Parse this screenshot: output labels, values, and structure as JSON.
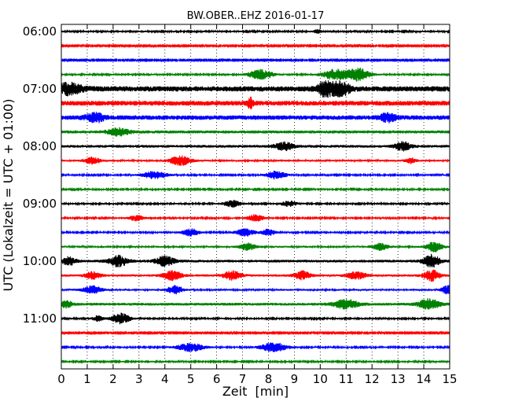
{
  "chart_data": {
    "type": "line",
    "title": "BW.OBER..EHZ 2016-01-17",
    "xlabel": "Zeit  [min]",
    "ylabel": "UTC (Lokalzeit = UTC + 01:00)",
    "xlim": [
      0,
      15
    ],
    "x_ticks": [
      "0",
      "1",
      "2",
      "3",
      "4",
      "5",
      "6",
      "7",
      "8",
      "9",
      "10",
      "11",
      "12",
      "13",
      "14",
      "15"
    ],
    "y_ticks": [
      "06:00",
      "07:00",
      "08:00",
      "09:00",
      "10:00",
      "11:00"
    ],
    "colors": [
      "#000000",
      "#ff0000",
      "#0000ff",
      "#008000"
    ],
    "grid": "vertical dotted lines at each minute",
    "traces": [
      {
        "start": "06:00",
        "color": "#000000",
        "amplitude": 0.1,
        "bursts": [
          {
            "at": 9.9,
            "amp": 0.25,
            "dur": 0.15
          }
        ]
      },
      {
        "start": "06:15",
        "color": "#ff0000",
        "amplitude": 0.08,
        "bursts": []
      },
      {
        "start": "06:30",
        "color": "#0000ff",
        "amplitude": 0.08,
        "bursts": []
      },
      {
        "start": "06:45",
        "color": "#008000",
        "amplitude": 0.1,
        "bursts": [
          {
            "at": 7.7,
            "amp": 0.65,
            "dur": 0.45
          },
          {
            "at": 10.6,
            "amp": 0.7,
            "dur": 0.5
          },
          {
            "at": 11.5,
            "amp": 0.85,
            "dur": 0.4
          }
        ]
      },
      {
        "start": "07:00",
        "color": "#000000",
        "amplitude": 0.35,
        "bursts": [
          {
            "at": 0.3,
            "amp": 0.65,
            "dur": 0.5
          },
          {
            "at": 10.2,
            "amp": 0.9,
            "dur": 0.3
          },
          {
            "at": 10.8,
            "amp": 0.8,
            "dur": 0.35
          }
        ]
      },
      {
        "start": "07:15",
        "color": "#ff0000",
        "amplitude": 0.32,
        "bursts": [
          {
            "at": 7.3,
            "amp": 0.6,
            "dur": 0.1
          }
        ]
      },
      {
        "start": "07:30",
        "color": "#0000ff",
        "amplitude": 0.3,
        "bursts": [
          {
            "at": 1.3,
            "amp": 0.55,
            "dur": 0.35
          },
          {
            "at": 12.6,
            "amp": 0.5,
            "dur": 0.3
          }
        ]
      },
      {
        "start": "07:45",
        "color": "#008000",
        "amplitude": 0.2,
        "bursts": [
          {
            "at": 2.2,
            "amp": 0.45,
            "dur": 0.4
          }
        ]
      },
      {
        "start": "08:00",
        "color": "#000000",
        "amplitude": 0.18,
        "bursts": [
          {
            "at": 8.6,
            "amp": 0.5,
            "dur": 0.35
          },
          {
            "at": 13.2,
            "amp": 0.55,
            "dur": 0.3
          }
        ]
      },
      {
        "start": "08:15",
        "color": "#ff0000",
        "amplitude": 0.12,
        "bursts": [
          {
            "at": 1.2,
            "amp": 0.45,
            "dur": 0.3
          },
          {
            "at": 4.6,
            "amp": 0.6,
            "dur": 0.4
          },
          {
            "at": 13.5,
            "amp": 0.35,
            "dur": 0.2
          }
        ]
      },
      {
        "start": "08:30",
        "color": "#0000ff",
        "amplitude": 0.1,
        "bursts": [
          {
            "at": 3.6,
            "amp": 0.5,
            "dur": 0.45
          },
          {
            "at": 8.3,
            "amp": 0.55,
            "dur": 0.35
          }
        ]
      },
      {
        "start": "08:45",
        "color": "#008000",
        "amplitude": 0.1,
        "bursts": []
      },
      {
        "start": "09:00",
        "color": "#000000",
        "amplitude": 0.1,
        "bursts": [
          {
            "at": 6.6,
            "amp": 0.45,
            "dur": 0.3
          },
          {
            "at": 8.8,
            "amp": 0.35,
            "dur": 0.3
          }
        ]
      },
      {
        "start": "09:15",
        "color": "#ff0000",
        "amplitude": 0.1,
        "bursts": [
          {
            "at": 2.9,
            "amp": 0.35,
            "dur": 0.3
          },
          {
            "at": 7.5,
            "amp": 0.45,
            "dur": 0.3
          }
        ]
      },
      {
        "start": "09:30",
        "color": "#0000ff",
        "amplitude": 0.1,
        "bursts": [
          {
            "at": 5.0,
            "amp": 0.5,
            "dur": 0.3
          },
          {
            "at": 7.1,
            "amp": 0.5,
            "dur": 0.35
          },
          {
            "at": 8.0,
            "amp": 0.45,
            "dur": 0.25
          }
        ]
      },
      {
        "start": "09:45",
        "color": "#008000",
        "amplitude": 0.12,
        "bursts": [
          {
            "at": 7.2,
            "amp": 0.45,
            "dur": 0.3
          },
          {
            "at": 12.3,
            "amp": 0.45,
            "dur": 0.3
          },
          {
            "at": 14.4,
            "amp": 0.65,
            "dur": 0.3
          }
        ]
      },
      {
        "start": "10:00",
        "color": "#000000",
        "amplitude": 0.18,
        "bursts": [
          {
            "at": 0.3,
            "amp": 0.5,
            "dur": 0.25
          },
          {
            "at": 2.2,
            "amp": 0.7,
            "dur": 0.35
          },
          {
            "at": 4.0,
            "amp": 0.6,
            "dur": 0.35
          },
          {
            "at": 14.3,
            "amp": 0.8,
            "dur": 0.3
          }
        ]
      },
      {
        "start": "10:15",
        "color": "#ff0000",
        "amplitude": 0.15,
        "bursts": [
          {
            "at": 1.2,
            "amp": 0.45,
            "dur": 0.3
          },
          {
            "at": 4.3,
            "amp": 0.6,
            "dur": 0.35
          },
          {
            "at": 6.6,
            "amp": 0.55,
            "dur": 0.35
          },
          {
            "at": 9.3,
            "amp": 0.55,
            "dur": 0.3
          },
          {
            "at": 11.4,
            "amp": 0.5,
            "dur": 0.35
          },
          {
            "at": 14.3,
            "amp": 0.7,
            "dur": 0.3
          }
        ]
      },
      {
        "start": "10:30",
        "color": "#0000ff",
        "amplitude": 0.12,
        "bursts": [
          {
            "at": 1.2,
            "amp": 0.5,
            "dur": 0.35
          },
          {
            "at": 4.4,
            "amp": 0.55,
            "dur": 0.3
          },
          {
            "at": 14.9,
            "amp": 0.6,
            "dur": 0.2
          }
        ]
      },
      {
        "start": "10:45",
        "color": "#008000",
        "amplitude": 0.18,
        "bursts": [
          {
            "at": 0.2,
            "amp": 0.45,
            "dur": 0.2
          },
          {
            "at": 11.0,
            "amp": 0.6,
            "dur": 0.45
          },
          {
            "at": 14.2,
            "amp": 0.65,
            "dur": 0.4
          }
        ]
      },
      {
        "start": "11:00",
        "color": "#000000",
        "amplitude": 0.1,
        "bursts": [
          {
            "at": 2.3,
            "amp": 0.7,
            "dur": 0.35
          },
          {
            "at": 1.4,
            "amp": 0.35,
            "dur": 0.2
          }
        ]
      },
      {
        "start": "11:15",
        "color": "#ff0000",
        "amplitude": 0.08,
        "bursts": []
      },
      {
        "start": "11:30",
        "color": "#0000ff",
        "amplitude": 0.1,
        "bursts": [
          {
            "at": 5.0,
            "amp": 0.55,
            "dur": 0.5
          },
          {
            "at": 8.2,
            "amp": 0.6,
            "dur": 0.5
          }
        ]
      },
      {
        "start": "11:45",
        "color": "#008000",
        "amplitude": 0.1,
        "bursts": []
      }
    ]
  }
}
